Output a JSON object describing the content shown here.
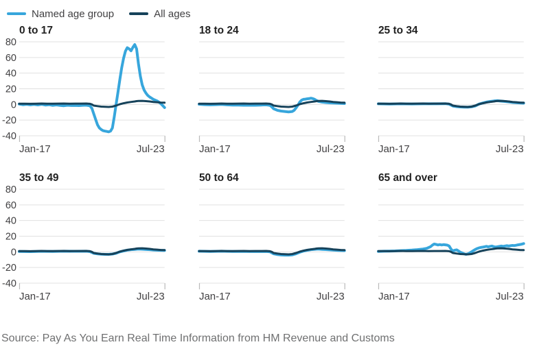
{
  "legend": {
    "items": [
      {
        "key": "named",
        "label": "Named age group"
      },
      {
        "key": "all",
        "label": "All ages"
      }
    ]
  },
  "source": "Source: Pay As You Earn Real Time Information from HM Revenue and Customs",
  "chart_data": {
    "type": "line",
    "layout": {
      "rows": 2,
      "cols": 3,
      "shared_axes": true,
      "grid": "horizontal-only",
      "legend_position": "top-left"
    },
    "title": "",
    "xlabel": "",
    "ylabel": "",
    "x_ticks": [
      "Jan-17",
      "Jul-23"
    ],
    "x_unit": "months since Jan-17",
    "x_range_months": [
      0,
      78
    ],
    "y_ticks": [
      80,
      60,
      40,
      20,
      0,
      -20,
      -40
    ],
    "ylim": [
      -40,
      80
    ],
    "series_colors": {
      "named": "#37a6dc",
      "all": "#16425a"
    },
    "grid_color": "#e0e0e0",
    "tick_color": "#b9b9b9",
    "tick_label_color": "#414042",
    "title_color": "#222222",
    "all_ages_series_name": "All ages",
    "all_ages_points": [
      [
        0,
        1
      ],
      [
        3,
        0.9
      ],
      [
        6,
        0.8
      ],
      [
        9,
        1.0
      ],
      [
        12,
        1.2
      ],
      [
        15,
        1.0
      ],
      [
        18,
        1.0
      ],
      [
        21,
        1.1
      ],
      [
        24,
        1.2
      ],
      [
        27,
        1.0
      ],
      [
        30,
        1.1
      ],
      [
        33,
        1.1
      ],
      [
        36,
        1.2
      ],
      [
        38,
        0.8
      ],
      [
        39,
        0
      ],
      [
        40,
        -1.5
      ],
      [
        42,
        -2.2
      ],
      [
        44,
        -2.8
      ],
      [
        46,
        -3.0
      ],
      [
        48,
        -3.2
      ],
      [
        50,
        -2.8
      ],
      [
        52,
        -1.5
      ],
      [
        54,
        0.3
      ],
      [
        56,
        1.5
      ],
      [
        58,
        2.5
      ],
      [
        60,
        3.2
      ],
      [
        62,
        3.8
      ],
      [
        63,
        4.2
      ],
      [
        64,
        4.5
      ],
      [
        66,
        4.6
      ],
      [
        68,
        4.2
      ],
      [
        70,
        3.8
      ],
      [
        72,
        3.2
      ],
      [
        74,
        2.8
      ],
      [
        76,
        2.4
      ],
      [
        78,
        2.2
      ]
    ],
    "panels": [
      {
        "title": "0 to 17",
        "show_y_labels": true,
        "named_points": [
          [
            0,
            0.5
          ],
          [
            2,
            -0.3
          ],
          [
            4,
            0.2
          ],
          [
            6,
            -0.5
          ],
          [
            8,
            0
          ],
          [
            10,
            -0.6
          ],
          [
            12,
            0.2
          ],
          [
            14,
            -0.8
          ],
          [
            16,
            -0.3
          ],
          [
            18,
            -1.2
          ],
          [
            20,
            -0.6
          ],
          [
            22,
            -1.3
          ],
          [
            24,
            -1.6
          ],
          [
            26,
            -1.0
          ],
          [
            28,
            -1.4
          ],
          [
            30,
            -1.2
          ],
          [
            32,
            -1.5
          ],
          [
            34,
            -1.1
          ],
          [
            36,
            -0.9
          ],
          [
            38,
            -1.8
          ],
          [
            39,
            -5
          ],
          [
            40,
            -12
          ],
          [
            41,
            -19
          ],
          [
            42,
            -26
          ],
          [
            43,
            -30
          ],
          [
            44,
            -32
          ],
          [
            45,
            -33.5
          ],
          [
            46,
            -34
          ],
          [
            47,
            -34.5
          ],
          [
            48,
            -35
          ],
          [
            49,
            -34
          ],
          [
            50,
            -30
          ],
          [
            51,
            -16
          ],
          [
            52,
            0
          ],
          [
            53,
            16
          ],
          [
            54,
            32
          ],
          [
            55,
            47
          ],
          [
            56,
            59
          ],
          [
            57,
            68
          ],
          [
            58,
            72.5
          ],
          [
            59,
            71
          ],
          [
            60,
            68.5
          ],
          [
            61,
            73
          ],
          [
            62,
            76.5
          ],
          [
            63,
            71
          ],
          [
            64,
            52
          ],
          [
            65,
            36
          ],
          [
            66,
            25
          ],
          [
            67,
            18.5
          ],
          [
            68,
            14.5
          ],
          [
            69,
            11.5
          ],
          [
            70,
            9.5
          ],
          [
            71,
            8
          ],
          [
            72,
            6.5
          ],
          [
            73,
            5.5
          ],
          [
            74,
            4.5
          ],
          [
            75,
            3
          ],
          [
            76,
            1
          ],
          [
            77,
            -1.5
          ],
          [
            78,
            -4
          ]
        ]
      },
      {
        "title": "18 to 24",
        "show_y_labels": false,
        "named_points": [
          [
            0,
            0.3
          ],
          [
            3,
            -0.2
          ],
          [
            6,
            -0.5
          ],
          [
            9,
            -0.2
          ],
          [
            12,
            0
          ],
          [
            15,
            -0.5
          ],
          [
            18,
            -0.8
          ],
          [
            21,
            -0.8
          ],
          [
            24,
            -1.0
          ],
          [
            27,
            -1.0
          ],
          [
            30,
            -1.0
          ],
          [
            33,
            -0.8
          ],
          [
            36,
            -0.5
          ],
          [
            38,
            -1.2
          ],
          [
            39,
            -3
          ],
          [
            40,
            -5.5
          ],
          [
            42,
            -7.5
          ],
          [
            44,
            -8.5
          ],
          [
            46,
            -9
          ],
          [
            48,
            -9.5
          ],
          [
            50,
            -9
          ],
          [
            51,
            -7.5
          ],
          [
            52,
            -4.5
          ],
          [
            53,
            -1
          ],
          [
            54,
            3
          ],
          [
            55,
            5.5
          ],
          [
            56,
            6.5
          ],
          [
            57,
            6.8
          ],
          [
            58,
            7.2
          ],
          [
            59,
            7.5
          ],
          [
            60,
            8
          ],
          [
            61,
            7.5
          ],
          [
            62,
            6.5
          ],
          [
            63,
            5
          ],
          [
            64,
            4
          ],
          [
            66,
            3
          ],
          [
            68,
            2.5
          ],
          [
            70,
            2
          ],
          [
            72,
            1.8
          ],
          [
            75,
            1.5
          ],
          [
            78,
            1.2
          ]
        ]
      },
      {
        "title": "25 to 34",
        "show_y_labels": false,
        "named_points": [
          [
            0,
            0.8
          ],
          [
            6,
            0.5
          ],
          [
            12,
            0.8
          ],
          [
            18,
            0.6
          ],
          [
            24,
            0.8
          ],
          [
            30,
            0.8
          ],
          [
            36,
            1.0
          ],
          [
            38,
            0.4
          ],
          [
            40,
            -2
          ],
          [
            42,
            -2.8
          ],
          [
            44,
            -3.2
          ],
          [
            46,
            -3.4
          ],
          [
            48,
            -3.5
          ],
          [
            50,
            -3
          ],
          [
            52,
            -2
          ],
          [
            54,
            0.5
          ],
          [
            56,
            1.8
          ],
          [
            58,
            3
          ],
          [
            60,
            3.8
          ],
          [
            62,
            4.4
          ],
          [
            64,
            4.8
          ],
          [
            66,
            4.2
          ],
          [
            68,
            3.8
          ],
          [
            70,
            3.2
          ],
          [
            72,
            2.6
          ],
          [
            75,
            2
          ],
          [
            78,
            1.6
          ]
        ]
      },
      {
        "title": "35 to 49",
        "show_y_labels": true,
        "named_points": [
          [
            0,
            0.5
          ],
          [
            6,
            0.3
          ],
          [
            12,
            0.7
          ],
          [
            18,
            0.5
          ],
          [
            24,
            0.8
          ],
          [
            30,
            0.7
          ],
          [
            36,
            0.8
          ],
          [
            38,
            0.3
          ],
          [
            40,
            -1.8
          ],
          [
            42,
            -2.6
          ],
          [
            44,
            -3
          ],
          [
            46,
            -3.2
          ],
          [
            48,
            -3.2
          ],
          [
            50,
            -2.8
          ],
          [
            52,
            -1.8
          ],
          [
            54,
            0
          ],
          [
            56,
            1.2
          ],
          [
            58,
            2.2
          ],
          [
            60,
            2.8
          ],
          [
            62,
            3.2
          ],
          [
            64,
            3.5
          ],
          [
            66,
            3.4
          ],
          [
            68,
            3
          ],
          [
            70,
            2.8
          ],
          [
            72,
            2.4
          ],
          [
            75,
            2
          ],
          [
            78,
            1.8
          ]
        ]
      },
      {
        "title": "50 to 64",
        "show_y_labels": false,
        "named_points": [
          [
            0,
            0.8
          ],
          [
            6,
            0.5
          ],
          [
            12,
            0.8
          ],
          [
            18,
            0.5
          ],
          [
            24,
            0.5
          ],
          [
            30,
            0.4
          ],
          [
            36,
            0.5
          ],
          [
            38,
            0
          ],
          [
            40,
            -2.5
          ],
          [
            42,
            -3.5
          ],
          [
            44,
            -4
          ],
          [
            46,
            -4.2
          ],
          [
            48,
            -4.2
          ],
          [
            50,
            -3.8
          ],
          [
            52,
            -2.5
          ],
          [
            54,
            -0.5
          ],
          [
            56,
            1
          ],
          [
            58,
            2
          ],
          [
            60,
            2.8
          ],
          [
            62,
            3.3
          ],
          [
            64,
            3.5
          ],
          [
            66,
            3.2
          ],
          [
            68,
            2.9
          ],
          [
            70,
            2.6
          ],
          [
            72,
            2.2
          ],
          [
            75,
            1.9
          ],
          [
            78,
            1.6
          ]
        ]
      },
      {
        "title": "65 and over",
        "show_y_labels": false,
        "named_points": [
          [
            0,
            0.5
          ],
          [
            3,
            0.8
          ],
          [
            6,
            1
          ],
          [
            9,
            1.2
          ],
          [
            12,
            1.5
          ],
          [
            15,
            1.8
          ],
          [
            18,
            2.2
          ],
          [
            21,
            2.8
          ],
          [
            24,
            3.6
          ],
          [
            26,
            4.5
          ],
          [
            28,
            6.5
          ],
          [
            29,
            8.5
          ],
          [
            30,
            10
          ],
          [
            31,
            9.5
          ],
          [
            32,
            8.8
          ],
          [
            33,
            9.3
          ],
          [
            34,
            8.8
          ],
          [
            35,
            9.2
          ],
          [
            36,
            9
          ],
          [
            37,
            8.6
          ],
          [
            38,
            7.5
          ],
          [
            39,
            3.5
          ],
          [
            40,
            1
          ],
          [
            41,
            2
          ],
          [
            42,
            2.6
          ],
          [
            43,
            1.2
          ],
          [
            44,
            -0.5
          ],
          [
            45,
            -1.5
          ],
          [
            46,
            -2.5
          ],
          [
            47,
            -3.2
          ],
          [
            48,
            -2.6
          ],
          [
            49,
            -1.5
          ],
          [
            50,
            0
          ],
          [
            51,
            1.5
          ],
          [
            52,
            3
          ],
          [
            53,
            4.2
          ],
          [
            54,
            5
          ],
          [
            55,
            5.6
          ],
          [
            56,
            6
          ],
          [
            57,
            6.5
          ],
          [
            58,
            7
          ],
          [
            59,
            6.4
          ],
          [
            60,
            7
          ],
          [
            61,
            7.4
          ],
          [
            62,
            6.6
          ],
          [
            63,
            6.2
          ],
          [
            64,
            6.6
          ],
          [
            65,
            7
          ],
          [
            66,
            7.4
          ],
          [
            67,
            7
          ],
          [
            68,
            7.5
          ],
          [
            69,
            7.8
          ],
          [
            70,
            7.4
          ],
          [
            71,
            7.8
          ],
          [
            72,
            8.2
          ],
          [
            73,
            8
          ],
          [
            74,
            8.4
          ],
          [
            75,
            9
          ],
          [
            76,
            9.4
          ],
          [
            77,
            9.8
          ],
          [
            78,
            10.5
          ]
        ]
      }
    ]
  }
}
